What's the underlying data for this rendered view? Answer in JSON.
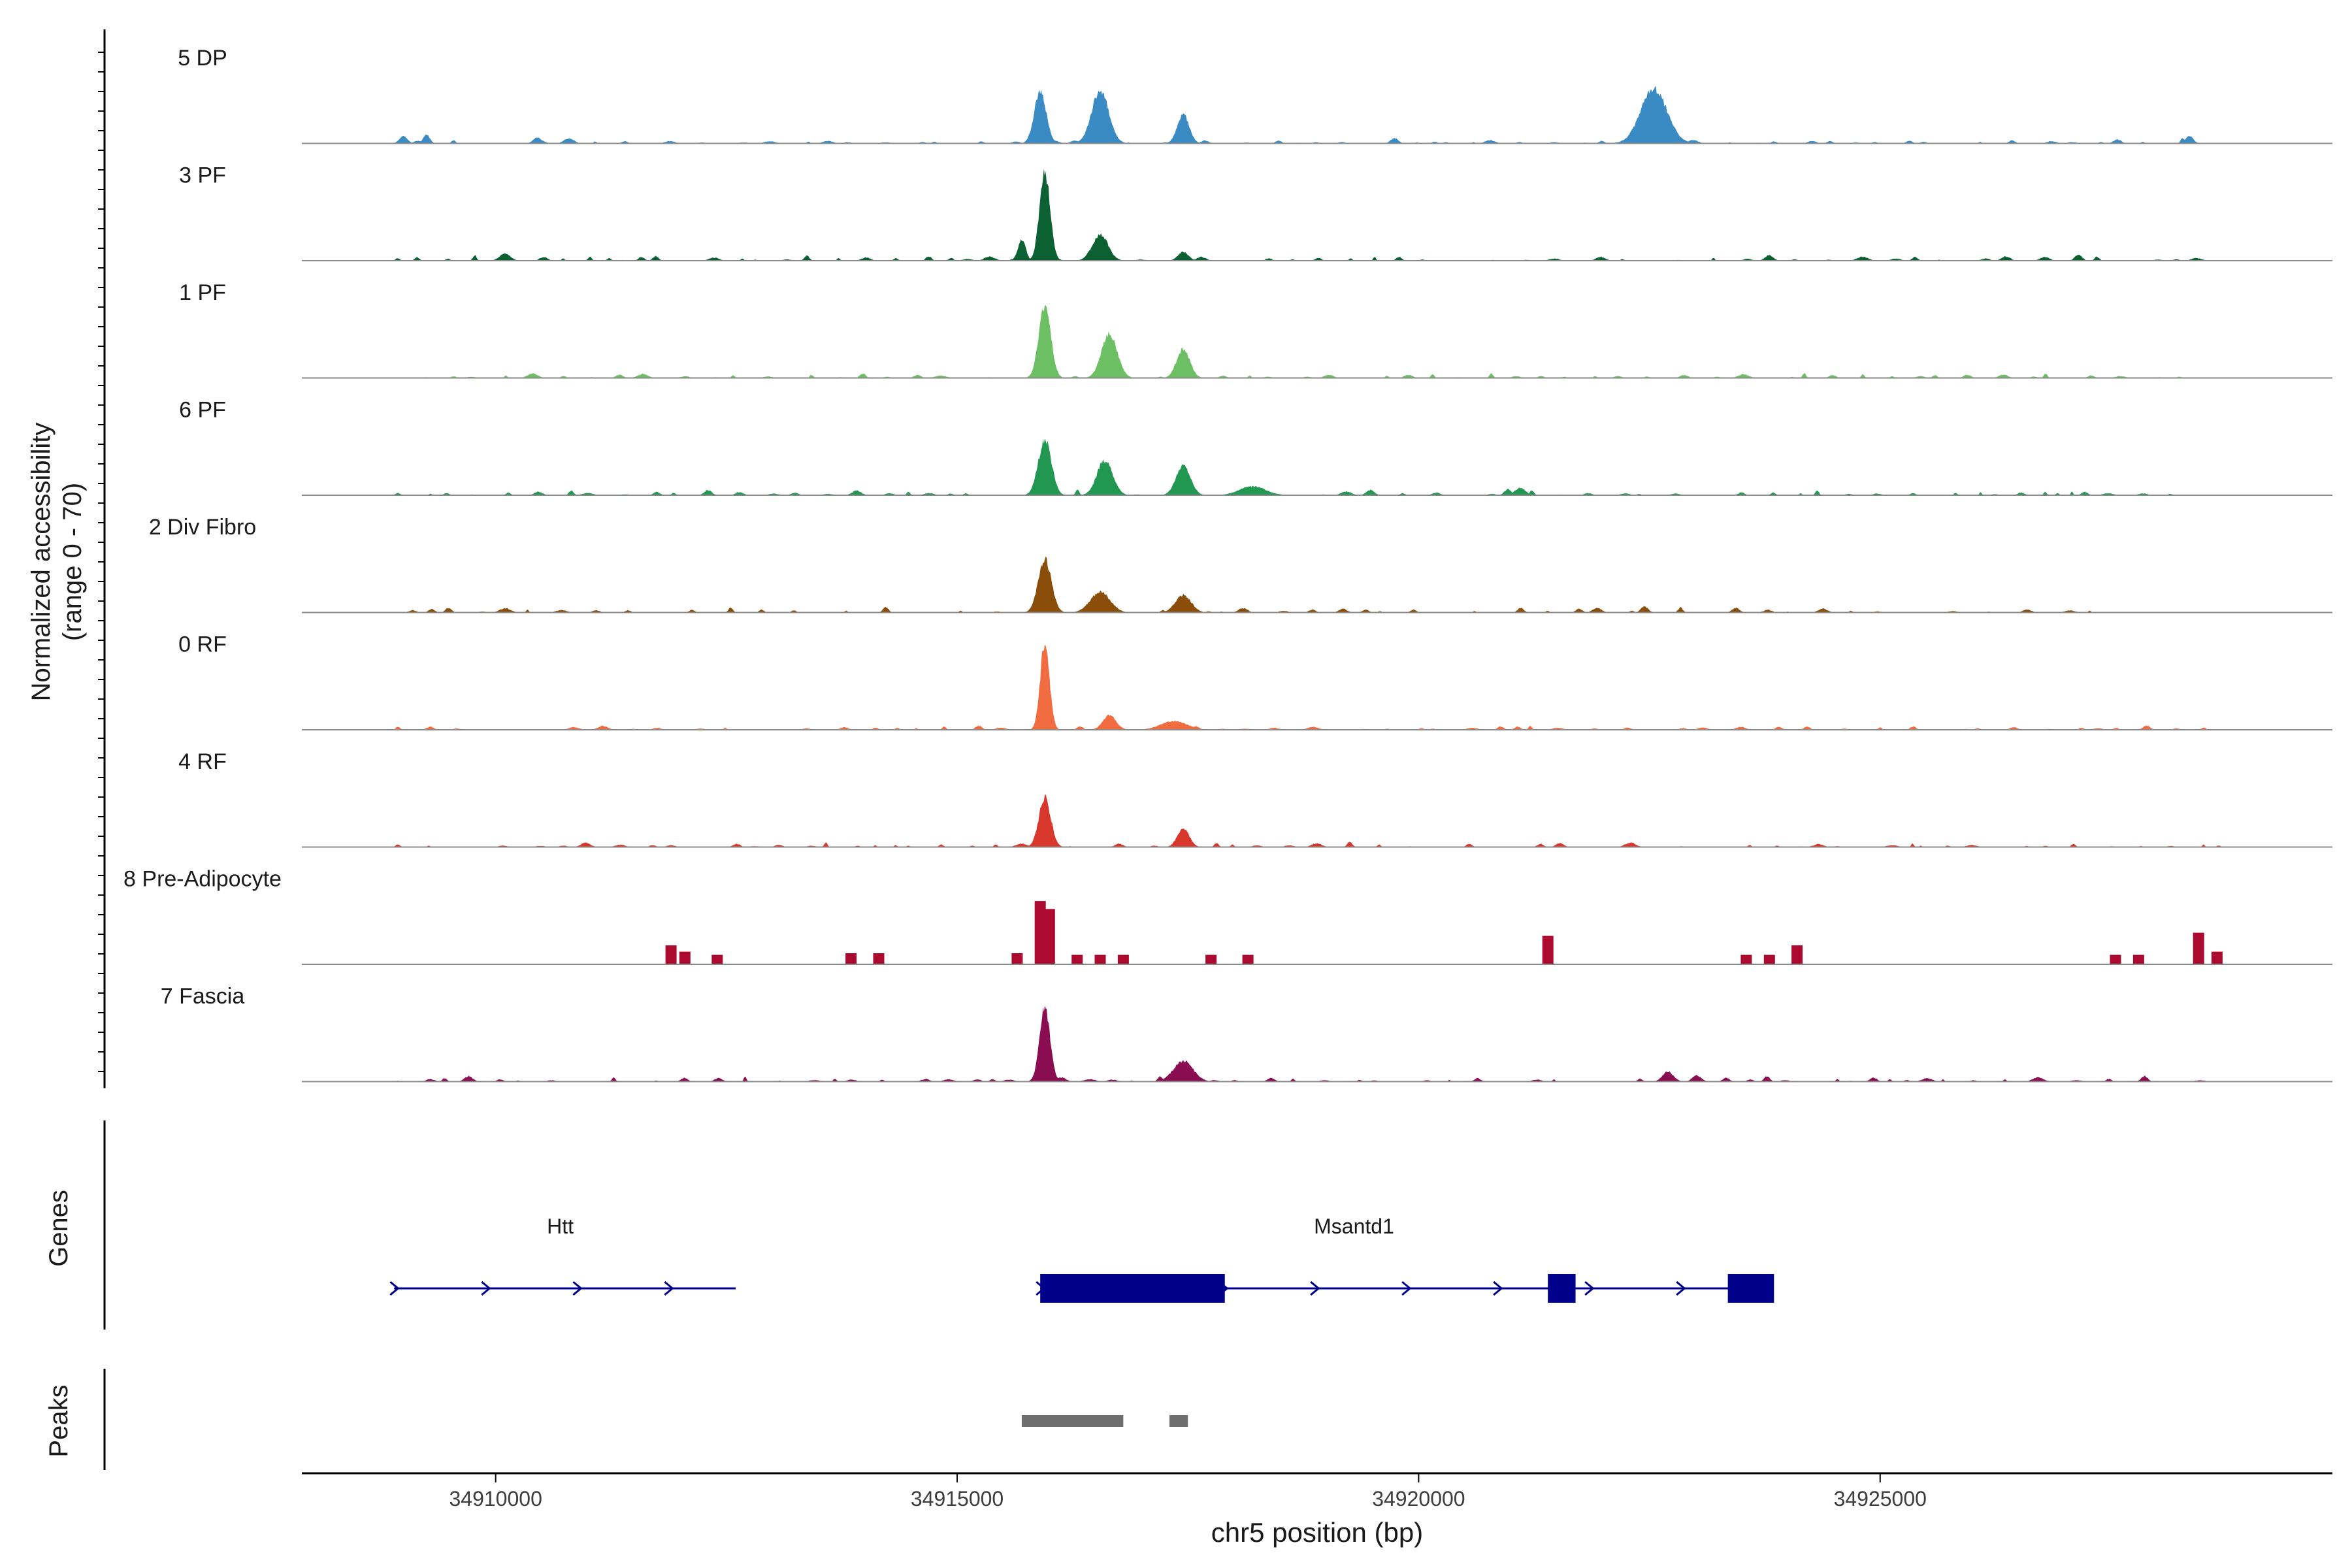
{
  "chart_data": {
    "type": "area",
    "title": "",
    "ylabel_line1": "Normalized accessibility",
    "ylabel_line2": "(range 0 - 70)",
    "xlabel": "chr5 position (bp)",
    "xlim": [
      34907900,
      34929900
    ],
    "ylim": [
      0,
      70
    ],
    "x_ticks": [
      34910000,
      34915000,
      34920000,
      34925000
    ],
    "x_tick_labels": [
      "34910000",
      "34915000",
      "34920000",
      "34925000"
    ],
    "tracks": [
      {
        "name": "5 DP",
        "color": "#3a8ac4",
        "noise": {
          "start": 34908900,
          "end": 34928400,
          "level": 3,
          "seed": 11
        },
        "peaks": [
          [
            34909000,
            5,
            60
          ],
          [
            34909250,
            6,
            50
          ],
          [
            34910450,
            4,
            60
          ],
          [
            34915900,
            36,
            90
          ],
          [
            34916550,
            36,
            130
          ],
          [
            34917450,
            20,
            90
          ],
          [
            34922550,
            37,
            200
          ],
          [
            34928350,
            5,
            60
          ]
        ]
      },
      {
        "name": "3 PF",
        "color": "#0c6132",
        "noise": {
          "start": 34908900,
          "end": 34928400,
          "level": 3.5,
          "seed": 23
        },
        "peaks": [
          [
            34910100,
            5,
            80
          ],
          [
            34915950,
            60,
            80
          ],
          [
            34915700,
            14,
            60
          ],
          [
            34916550,
            18,
            120
          ],
          [
            34917450,
            6,
            80
          ]
        ]
      },
      {
        "name": "1 PF",
        "color": "#6dbf63",
        "noise": {
          "start": 34908900,
          "end": 34928400,
          "level": 3,
          "seed": 37
        },
        "peaks": [
          [
            34915950,
            50,
            90
          ],
          [
            34916650,
            30,
            120
          ],
          [
            34917450,
            20,
            100
          ]
        ]
      },
      {
        "name": "6 PF",
        "color": "#229751",
        "noise": {
          "start": 34908900,
          "end": 34928200,
          "level": 3.5,
          "seed": 41
        },
        "peaks": [
          [
            34915950,
            38,
            100
          ],
          [
            34916600,
            24,
            120
          ],
          [
            34917450,
            20,
            110
          ],
          [
            34918200,
            6,
            200
          ],
          [
            34921100,
            5,
            80
          ]
        ]
      },
      {
        "name": "2 Div Fibro",
        "color": "#8a4d0a",
        "noise": {
          "start": 34908900,
          "end": 34927400,
          "level": 3.5,
          "seed": 53
        },
        "peaks": [
          [
            34915950,
            36,
            100
          ],
          [
            34916550,
            14,
            150
          ],
          [
            34917450,
            12,
            120
          ]
        ]
      },
      {
        "name": "0 RF",
        "color": "#f26c41",
        "noise": {
          "start": 34908900,
          "end": 34928700,
          "level": 2.5,
          "seed": 61
        },
        "peaks": [
          [
            34915950,
            60,
            70
          ],
          [
            34916650,
            10,
            100
          ],
          [
            34917350,
            6,
            200
          ]
        ]
      },
      {
        "name": "4 RF",
        "color": "#d8382c",
        "noise": {
          "start": 34908900,
          "end": 34928700,
          "level": 3,
          "seed": 73
        },
        "peaks": [
          [
            34915950,
            34,
            90
          ],
          [
            34917450,
            13,
            90
          ]
        ]
      },
      {
        "name": "8 Pre-Adipocyte",
        "color": "#ad0a2f",
        "noise": {
          "start": 34908900,
          "end": 34928700,
          "level": 0,
          "seed": 83
        },
        "bars": [
          [
            34911900,
            12
          ],
          [
            34912050,
            8
          ],
          [
            34912400,
            6
          ],
          [
            34913850,
            7
          ],
          [
            34914150,
            7
          ],
          [
            34915650,
            7
          ],
          [
            34915900,
            40
          ],
          [
            34916000,
            35
          ],
          [
            34916300,
            6
          ],
          [
            34916550,
            6
          ],
          [
            34916800,
            6
          ],
          [
            34917750,
            6
          ],
          [
            34918150,
            6
          ],
          [
            34921400,
            18
          ],
          [
            34923550,
            6
          ],
          [
            34923800,
            6
          ],
          [
            34924100,
            12
          ],
          [
            34927550,
            6
          ],
          [
            34927800,
            6
          ],
          [
            34928450,
            20
          ],
          [
            34928650,
            8
          ]
        ]
      },
      {
        "name": "7 Fascia",
        "color": "#8a0d52",
        "noise": {
          "start": 34908900,
          "end": 34928700,
          "level": 3.5,
          "seed": 97
        },
        "peaks": [
          [
            34915950,
            50,
            80
          ],
          [
            34917450,
            14,
            150
          ],
          [
            34922700,
            7,
            80
          ]
        ]
      }
    ],
    "genes_label": "Genes",
    "genes": [
      {
        "name": "Htt",
        "start": 34908900,
        "end": 34912600,
        "label_x": 34910700,
        "exons": []
      },
      {
        "name": "Msantd1",
        "start": 34915900,
        "end": 34923800,
        "label_x": 34919300,
        "exons": [
          [
            34915900,
            34917900
          ],
          [
            34921400,
            34921700
          ],
          [
            34923350,
            34923850
          ]
        ]
      }
    ],
    "peaks_label": "Peaks",
    "peak_regions": [
      [
        34915700,
        34916800
      ],
      [
        34917300,
        34917500
      ]
    ]
  },
  "colors": {
    "gene": "#00008b",
    "peak": "#6e6e6e",
    "baseline": "#8a8a8a",
    "axis": "#000000",
    "text": "#1a1a1a"
  }
}
